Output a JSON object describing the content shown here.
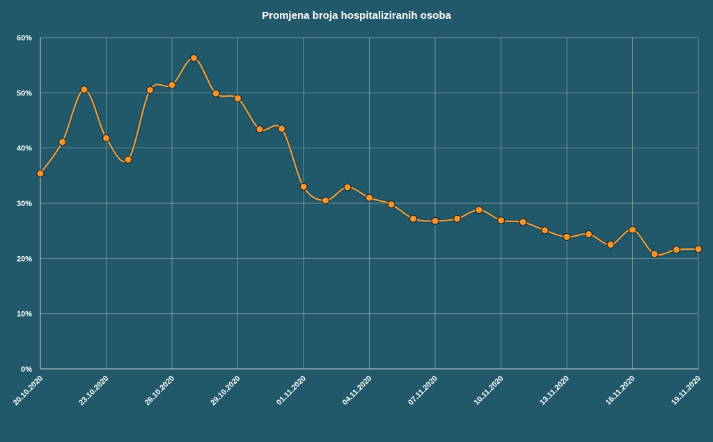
{
  "chart_data": {
    "type": "line",
    "title": "Promjena broja hospitaliziranih osoba",
    "xlabel": "",
    "ylabel": "",
    "ylim": [
      0,
      60
    ],
    "y_ticks": [
      0,
      10,
      20,
      30,
      40,
      50,
      60
    ],
    "y_tick_labels": [
      "0%",
      "10%",
      "20%",
      "30%",
      "40%",
      "50%",
      "60%"
    ],
    "x_tick_labels": [
      "20.10.2020",
      "23.10.2020",
      "26.10.2020",
      "29.10.2020",
      "01.11.2020",
      "04.11.2020",
      "07.11.2020",
      "10.11.2020",
      "13.11.2020",
      "16.11.2020",
      "19.11.2020"
    ],
    "x": [
      "20.10.2020",
      "21.10.2020",
      "22.10.2020",
      "23.10.2020",
      "24.10.2020",
      "25.10.2020",
      "26.10.2020",
      "27.10.2020",
      "28.10.2020",
      "29.10.2020",
      "30.10.2020",
      "31.10.2020",
      "01.11.2020",
      "02.11.2020",
      "03.11.2020",
      "04.11.2020",
      "05.11.2020",
      "06.11.2020",
      "07.11.2020",
      "08.11.2020",
      "09.11.2020",
      "10.11.2020",
      "11.11.2020",
      "12.11.2020",
      "13.11.2020",
      "14.11.2020",
      "15.11.2020",
      "16.11.2020",
      "17.11.2020",
      "18.11.2020",
      "19.11.2020"
    ],
    "series": [
      {
        "values": [
          35.4,
          41.1,
          50.6,
          41.8,
          37.9,
          50.5,
          51.4,
          56.3,
          49.9,
          49.0,
          43.4,
          43.5,
          33.0,
          30.5,
          32.9,
          31.0,
          29.8,
          27.2,
          26.8,
          27.2,
          28.8,
          26.9,
          26.6,
          25.1,
          23.9,
          24.4,
          22.5,
          25.2,
          20.8,
          21.6,
          21.7
        ]
      }
    ],
    "grid": true,
    "colors": {
      "background": "#22596a",
      "line": "#f0a040",
      "marker": "#f7962a"
    }
  }
}
